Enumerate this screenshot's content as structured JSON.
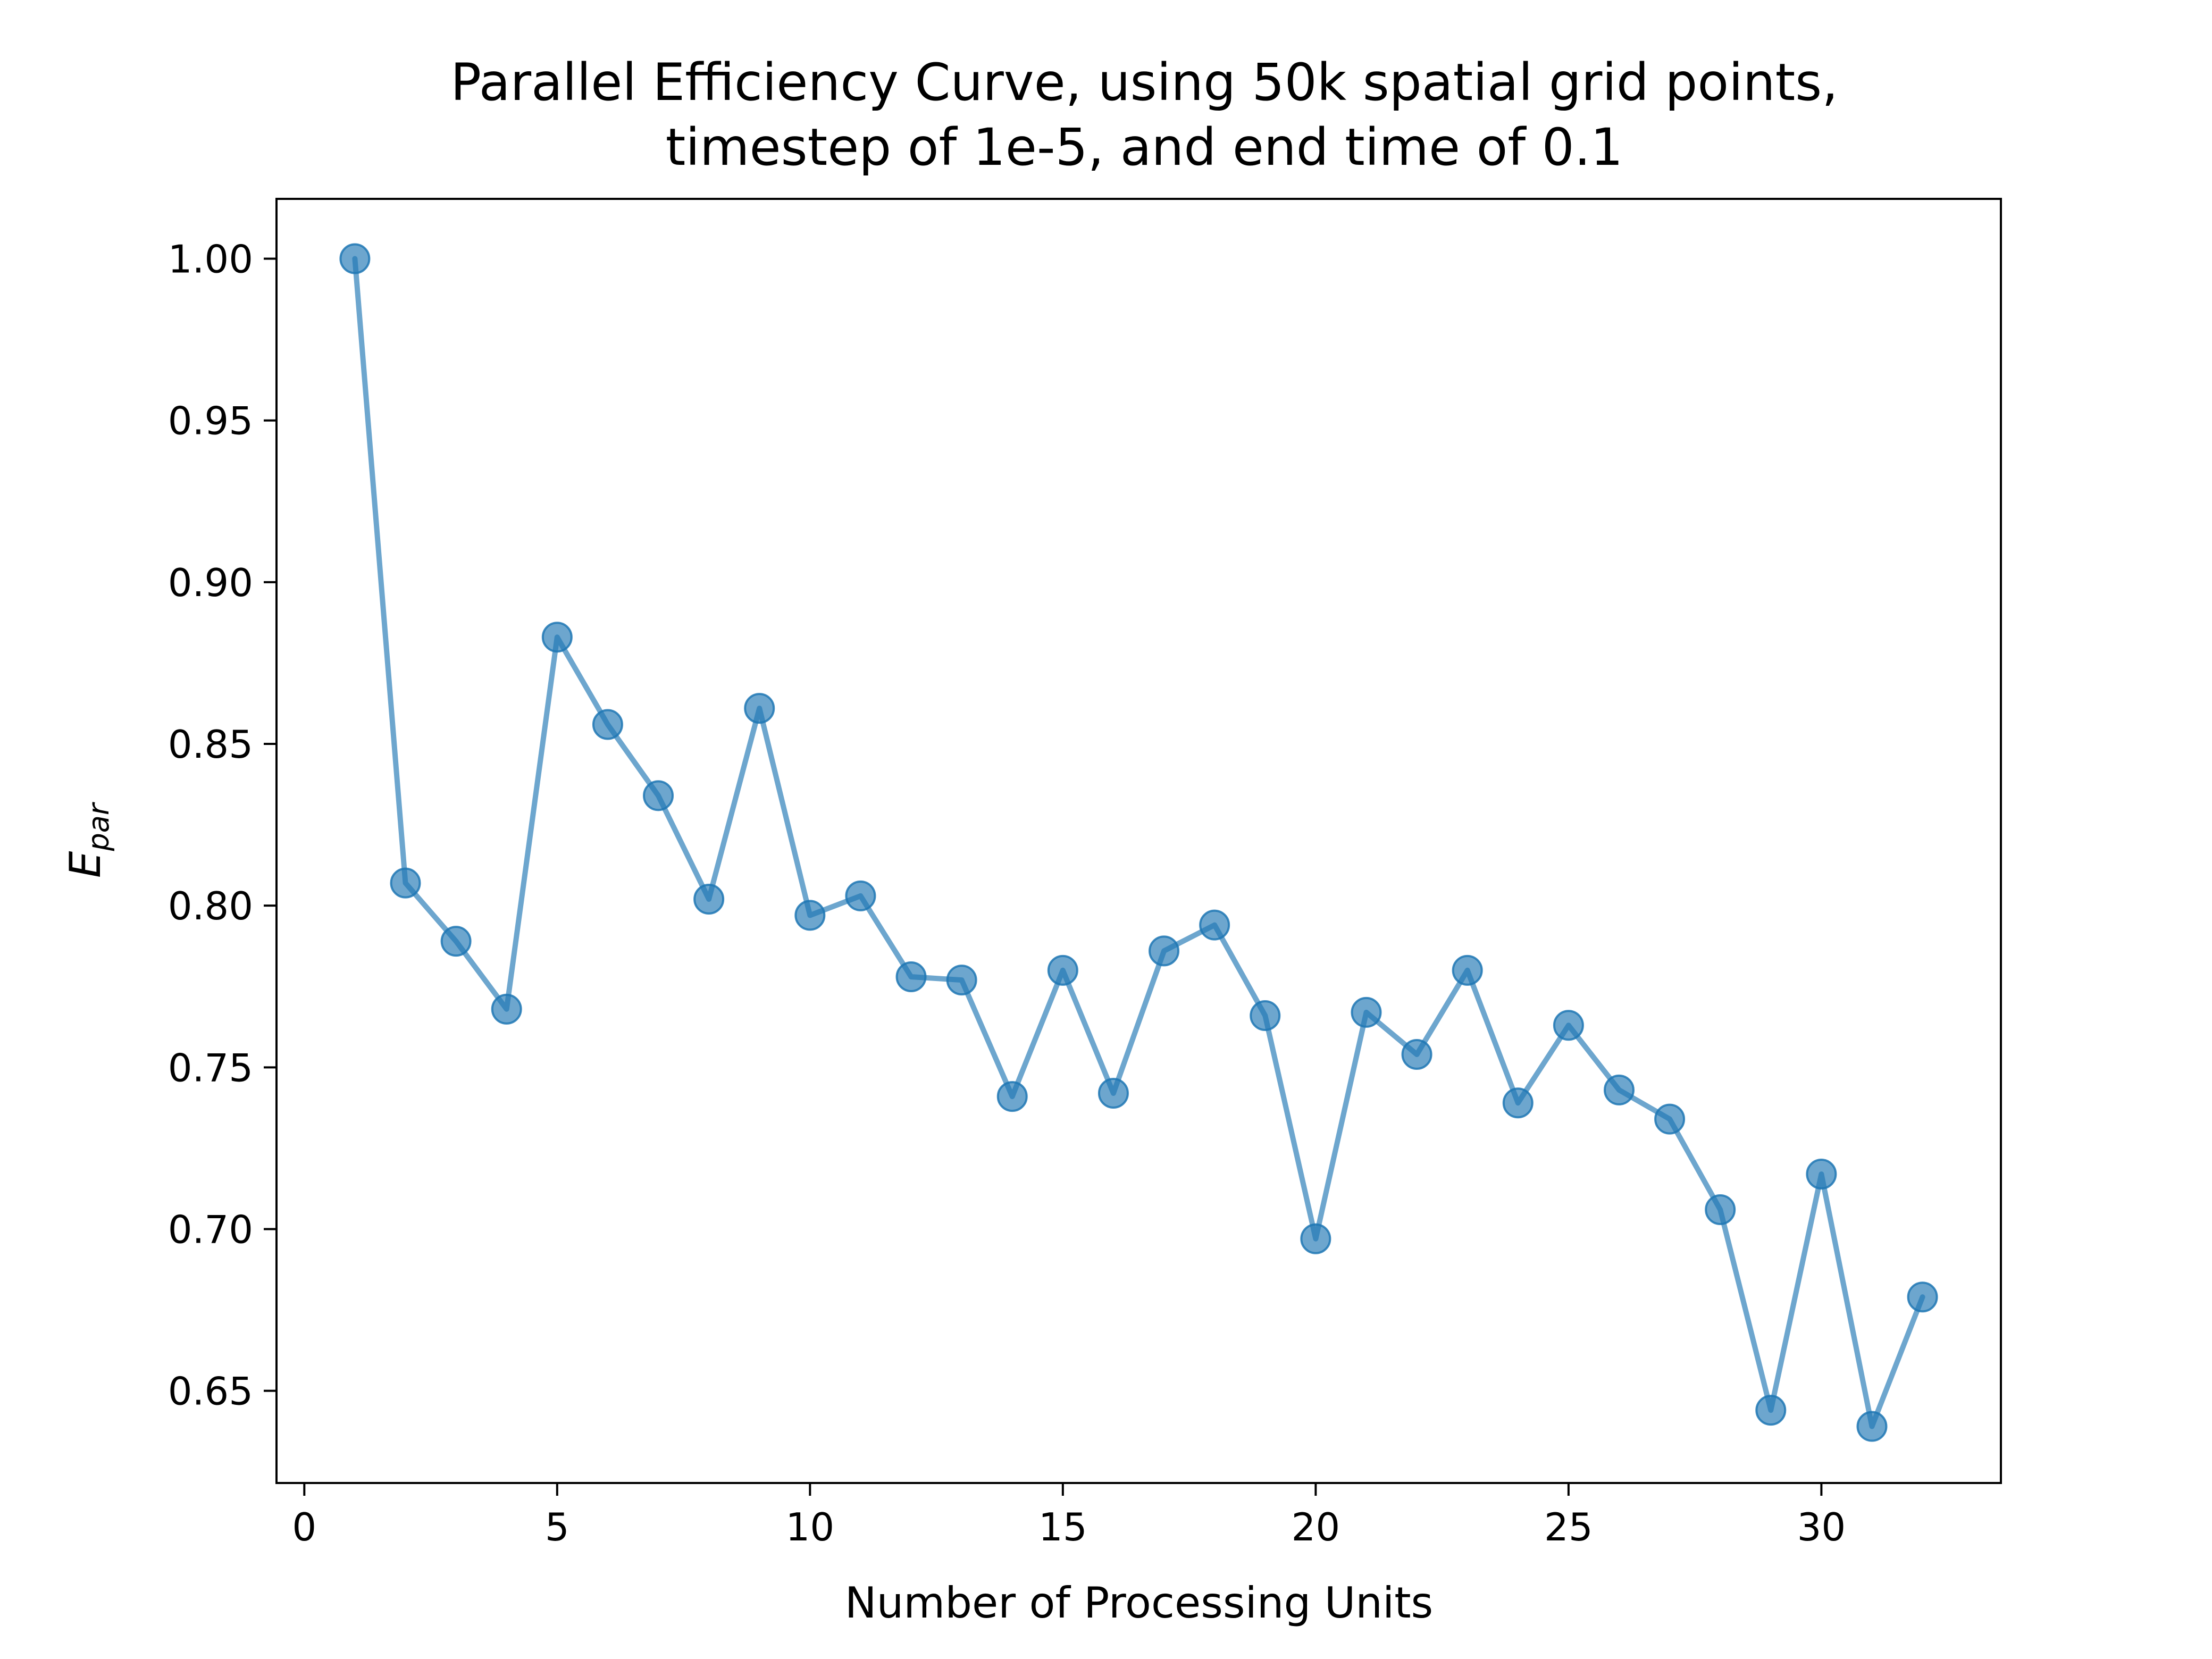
{
  "chart_data": {
    "type": "line",
    "title": [
      "Parallel Efficiency Curve, using 50k spatial grid points,",
      "timestep of 1e-5, and end time of 0.1"
    ],
    "xlabel": "Number of Processing Units",
    "ylabel": {
      "main": "E",
      "subscript": "par"
    },
    "xlim": [
      -0.55,
      33.55
    ],
    "ylim": [
      0.6215,
      1.0185
    ],
    "x_ticks": [
      0,
      5,
      10,
      15,
      20,
      25,
      30
    ],
    "x_tick_labels": [
      "0",
      "5",
      "10",
      "15",
      "20",
      "25",
      "30"
    ],
    "y_ticks": [
      0.65,
      0.7,
      0.75,
      0.8,
      0.85,
      0.9,
      0.95,
      1.0
    ],
    "y_tick_labels": [
      "0.65",
      "0.70",
      "0.75",
      "0.80",
      "0.85",
      "0.90",
      "0.95",
      "1.00"
    ],
    "grid": false,
    "series": [
      {
        "color": "#1f77b4",
        "marker": "circle",
        "x": [
          1,
          2,
          3,
          4,
          5,
          6,
          7,
          8,
          9,
          10,
          11,
          12,
          13,
          14,
          15,
          16,
          17,
          18,
          19,
          20,
          21,
          22,
          23,
          24,
          25,
          26,
          27,
          28,
          29,
          30,
          31,
          32
        ],
        "y": [
          1.0,
          0.807,
          0.789,
          0.768,
          0.883,
          0.856,
          0.834,
          0.802,
          0.861,
          0.797,
          0.803,
          0.778,
          0.777,
          0.741,
          0.78,
          0.742,
          0.786,
          0.794,
          0.766,
          0.697,
          0.767,
          0.754,
          0.78,
          0.739,
          0.763,
          0.743,
          0.734,
          0.706,
          0.644,
          0.717,
          0.639,
          0.679
        ]
      }
    ]
  }
}
